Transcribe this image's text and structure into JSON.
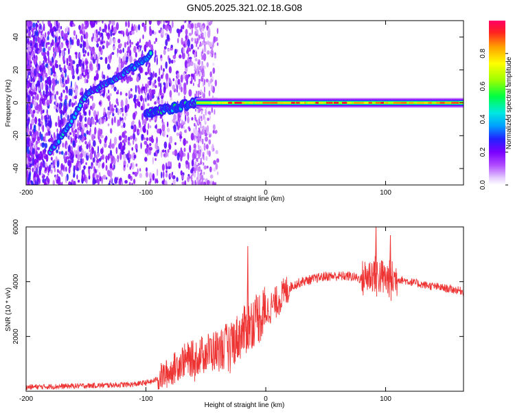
{
  "title": "GN05.2025.321.02.18.G08",
  "chart_data": [
    {
      "type": "heatmap",
      "xlabel": "Height of straight line (km)",
      "ylabel": "Frequency (Hz)",
      "xlim": [
        -200,
        165
      ],
      "ylim": [
        -50,
        50
      ],
      "xticks": [
        -200,
        -100,
        0,
        100
      ],
      "xtick_labels": [
        "-200",
        "-100",
        "0",
        "100"
      ],
      "yticks": [
        -40,
        -20,
        0,
        20,
        40
      ],
      "ytick_labels": [
        "-40",
        "-20",
        "0",
        "20",
        "40"
      ],
      "colorbar": {
        "label": "Normalized spectral amplitude",
        "range": [
          0,
          1
        ],
        "ticks": [
          0,
          0.2,
          0.4,
          0.6,
          0.8
        ],
        "tick_labels": [
          "0.0",
          "0.2",
          "0.4",
          "0.6",
          "0.8"
        ]
      },
      "features": [
        {
          "name": "steady carrier",
          "x": [
            -55,
            165
          ],
          "frequency": 0,
          "amplitude": [
            0.5,
            1.0
          ]
        },
        {
          "name": "drifting tone",
          "x": [
            [
              -180,
              -30
            ],
            [
              -165,
              -15
            ],
            [
              -150,
              5
            ],
            [
              -130,
              13
            ],
            [
              -110,
              22
            ],
            [
              -95,
              30
            ]
          ]
        },
        {
          "name": "converging branch",
          "x": [
            [
              -100,
              -7
            ],
            [
              -85,
              -4
            ],
            [
              -70,
              -2
            ],
            [
              -58,
              0
            ]
          ]
        }
      ]
    },
    {
      "type": "line",
      "xlabel": "Height of straight line (km)",
      "ylabel": "SNR (10 * v/v)",
      "xlim": [
        -200,
        165
      ],
      "ylim": [
        0,
        6000
      ],
      "xticks": [
        -200,
        -100,
        0,
        100
      ],
      "xtick_labels": [
        "-200",
        "-100",
        "0",
        "100"
      ],
      "yticks": [
        2000,
        4000,
        6000
      ],
      "ytick_labels": [
        "2000",
        "4000",
        "6000"
      ],
      "line_color": "#ee3333",
      "series": [
        {
          "name": "SNR",
          "x": [
            -200,
            -150,
            -110,
            -95,
            -80,
            -70,
            -60,
            -50,
            -40,
            -30,
            -20,
            -10,
            0,
            10,
            20,
            30,
            50,
            70,
            80,
            90,
            100,
            110,
            130,
            165
          ],
          "values": [
            150,
            200,
            250,
            350,
            700,
            1100,
            1200,
            1400,
            1500,
            1700,
            2100,
            2600,
            2900,
            3300,
            3800,
            4000,
            4200,
            4200,
            4100,
            4300,
            4100,
            4100,
            3900,
            3650
          ]
        }
      ],
      "spikes": [
        {
          "x": -15,
          "value": 5300
        },
        {
          "x": 92,
          "value": 6000
        },
        {
          "x": 104,
          "value": 5700
        }
      ]
    }
  ]
}
